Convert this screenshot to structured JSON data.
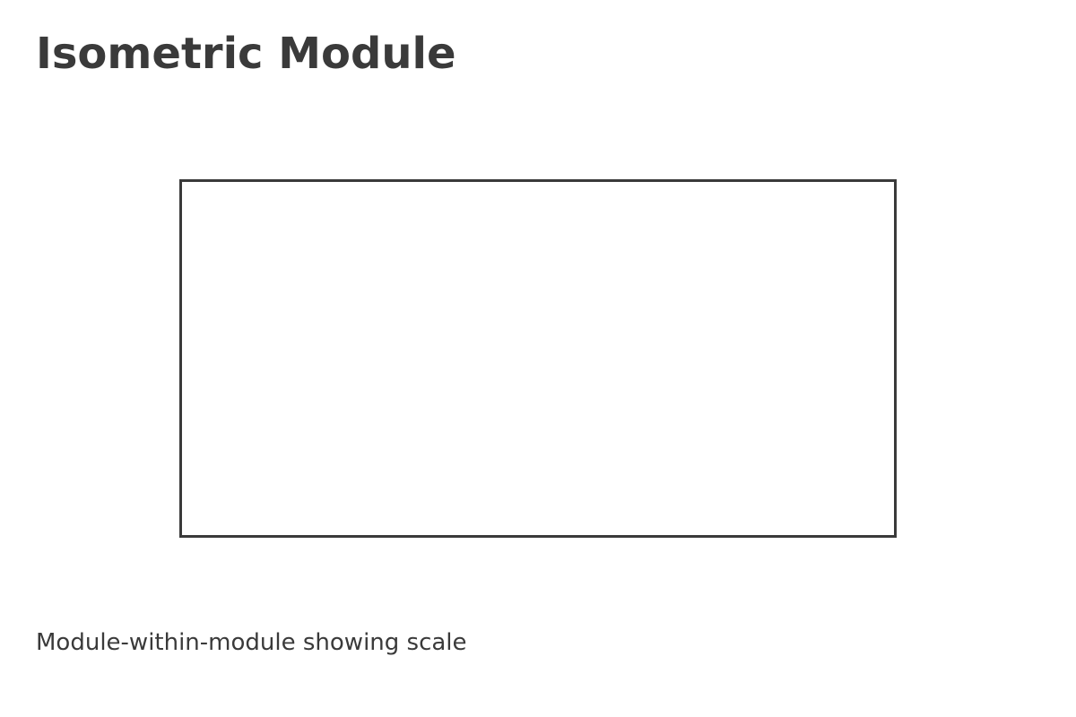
{
  "diagram": {
    "title": "Isometric Module",
    "caption": "Module-within-module showing scale"
  },
  "colors": {
    "ink": "#3a3a3a",
    "background": "#ffffff"
  }
}
